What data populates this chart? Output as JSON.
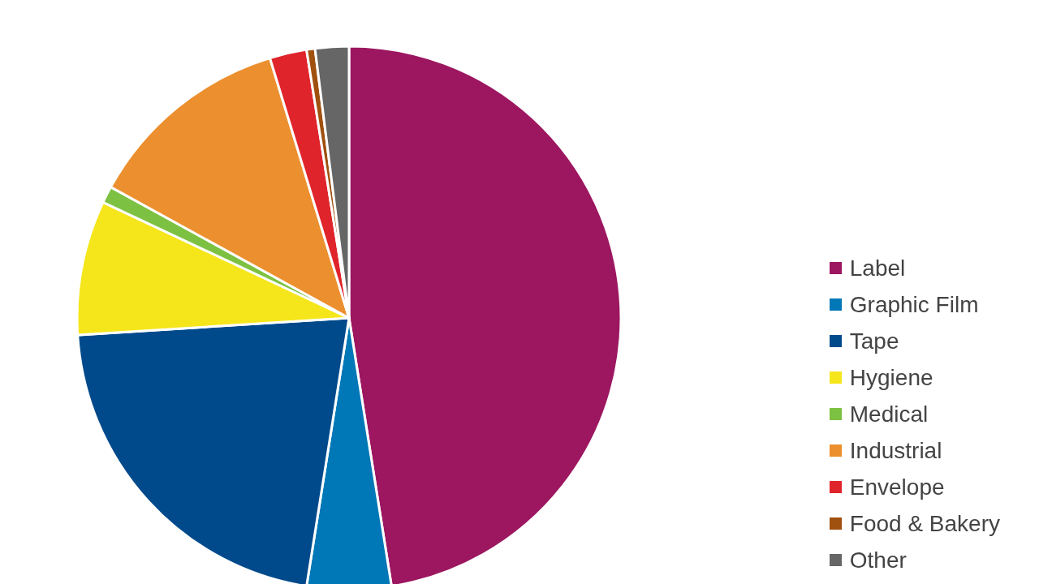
{
  "chart_data": {
    "type": "pie",
    "categories": [
      "Label",
      "Graphic Film",
      "Tape",
      "Hygiene",
      "Medical",
      "Industrial",
      "Envelope",
      "Food & Bakery",
      "Other"
    ],
    "values": [
      47.5,
      5,
      21.5,
      8,
      1,
      12.3,
      2.2,
      0.5,
      2
    ],
    "colors": [
      "#9c1660",
      "#0077b6",
      "#004a8c",
      "#f5e61c",
      "#7dc142",
      "#ec8f2e",
      "#e0242b",
      "#a0500f",
      "#666666"
    ],
    "legend": "right"
  }
}
